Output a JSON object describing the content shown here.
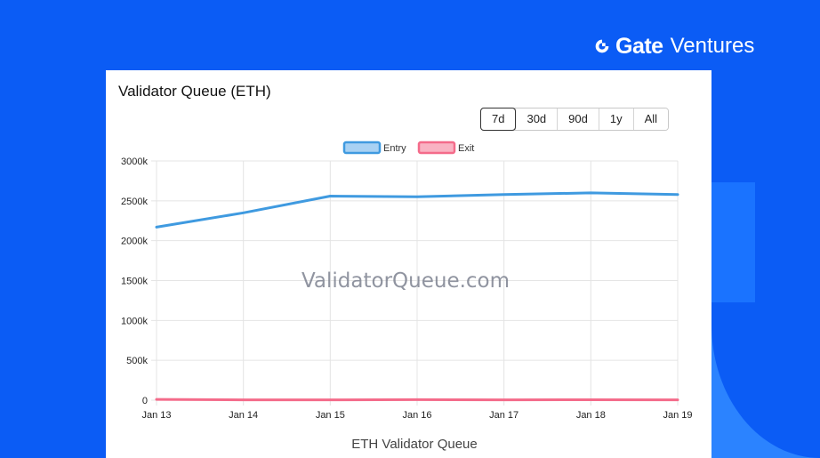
{
  "brand": {
    "name": "Gate",
    "sub": "Ventures",
    "logo_icon": "gate-logo-icon",
    "color": "#ffffff"
  },
  "page": {
    "background": "#0b5cf5"
  },
  "card": {
    "title": "Validator Queue (ETH)",
    "ranges": [
      "7d",
      "30d",
      "90d",
      "1y",
      "All"
    ],
    "active_range": "7d",
    "watermark": "ValidatorQueue.com"
  },
  "chart_data": {
    "type": "line",
    "title": "Validator Queue (ETH)",
    "xlabel": "ETH Validator Queue",
    "ylabel": "",
    "categories": [
      "Jan 13",
      "Jan 14",
      "Jan 15",
      "Jan 16",
      "Jan 17",
      "Jan 18",
      "Jan 19"
    ],
    "ylim": [
      0,
      3000
    ],
    "yticks": [
      0,
      500,
      1000,
      1500,
      2000,
      2500,
      3000
    ],
    "ytick_labels": [
      "0",
      "500k",
      "1000k",
      "1500k",
      "2000k",
      "2500k",
      "3000k"
    ],
    "grid": true,
    "legend": "top",
    "series": [
      {
        "name": "Entry",
        "color": "#3f9ae0",
        "fill": "#a8d1f3",
        "values": [
          2170,
          2350,
          2560,
          2550,
          2580,
          2600,
          2580
        ]
      },
      {
        "name": "Exit",
        "color": "#f46b8a",
        "fill": "#f9b3c3",
        "values": [
          10,
          5,
          4,
          7,
          5,
          6,
          5
        ]
      }
    ]
  }
}
